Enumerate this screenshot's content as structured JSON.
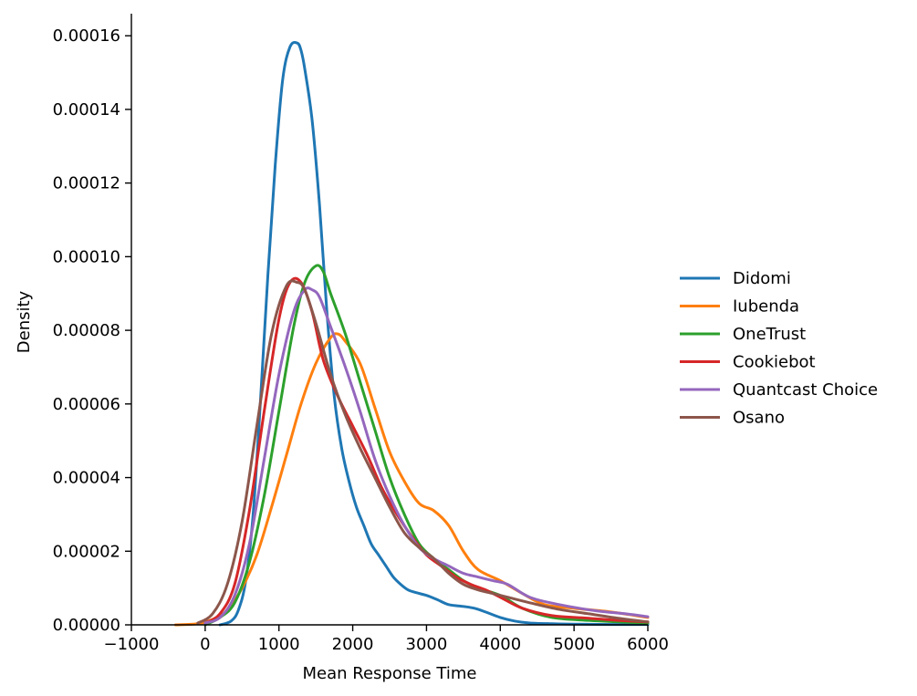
{
  "chart_data": {
    "type": "line",
    "title": "",
    "xlabel": "Mean Response Time",
    "ylabel": "Density",
    "xlim": [
      -1000,
      6000
    ],
    "ylim": [
      0,
      0.000166
    ],
    "x_ticks": [
      -1000,
      0,
      1000,
      2000,
      3000,
      4000,
      5000,
      6000
    ],
    "x_tick_labels": [
      "−1000",
      "0",
      "1000",
      "2000",
      "3000",
      "4000",
      "5000",
      "6000"
    ],
    "y_ticks": [
      0,
      2e-05,
      4e-05,
      6e-05,
      8e-05,
      0.0001,
      0.00012,
      0.00014,
      0.00016
    ],
    "y_tick_labels": [
      "0.00000",
      "0.00002",
      "0.00004",
      "0.00006",
      "0.00008",
      "0.00010",
      "0.00012",
      "0.00014",
      "0.00016"
    ],
    "grid": false,
    "legend_position": "right",
    "series": [
      {
        "name": "Didomi",
        "color": "#1f77b4",
        "x": [
          200,
          350,
          450,
          550,
          650,
          750,
          850,
          950,
          1050,
          1150,
          1250,
          1300,
          1350,
          1450,
          1550,
          1650,
          1750,
          1850,
          1950,
          2050,
          2150,
          2250,
          2350,
          2450,
          2550,
          2650,
          2750,
          2850,
          3000,
          3150,
          3300,
          3500,
          3650,
          3800,
          4000,
          4200,
          4400,
          4700,
          5000,
          5500,
          6000
        ],
        "y": [
          0,
          1e-06,
          4e-06,
          1.2e-05,
          3e-05,
          6.1e-05,
          9.5e-05,
          0.000125,
          0.000148,
          0.000157,
          0.000158,
          0.000156,
          0.000151,
          0.000137,
          0.000114,
          8.5e-05,
          6.2e-05,
          4.8e-05,
          3.9e-05,
          3.2e-05,
          2.7e-05,
          2.2e-05,
          1.9e-05,
          1.6e-05,
          1.3e-05,
          1.1e-05,
          9.5e-06,
          8.8e-06,
          8e-06,
          6.8e-06,
          5.5e-06,
          5e-06,
          4.5e-06,
          3.5e-06,
          2e-06,
          1e-06,
          5e-07,
          3e-07,
          2e-07,
          1e-07,
          1e-07
        ]
      },
      {
        "name": "Iubenda",
        "color": "#ff7f0e",
        "x": [
          -400,
          -100,
          100,
          300,
          500,
          700,
          900,
          1100,
          1300,
          1500,
          1700,
          1800,
          1900,
          2100,
          2300,
          2500,
          2700,
          2900,
          3100,
          3300,
          3500,
          3700,
          4000,
          4300,
          4600,
          5000,
          5500,
          6000
        ],
        "y": [
          0,
          3e-07,
          1.5e-06,
          4e-06,
          1e-05,
          1.9e-05,
          3.2e-05,
          4.6e-05,
          6e-05,
          7.1e-05,
          7.8e-05,
          7.9e-05,
          7.7e-05,
          7.1e-05,
          5.9e-05,
          4.7e-05,
          3.9e-05,
          3.3e-05,
          3.1e-05,
          2.7e-05,
          2e-05,
          1.5e-05,
          1.2e-05,
          8.5e-06,
          5.5e-06,
          4.5e-06,
          3.5e-06,
          2e-06
        ]
      },
      {
        "name": "OneTrust",
        "color": "#2ca02c",
        "x": [
          0,
          200,
          400,
          600,
          800,
          1000,
          1200,
          1350,
          1500,
          1600,
          1700,
          1900,
          2100,
          2300,
          2500,
          2700,
          2900,
          3100,
          3300,
          3500,
          3700,
          4000,
          4300,
          4700,
          5200,
          5600,
          6000
        ],
        "y": [
          0,
          2e-06,
          6e-06,
          1.7e-05,
          3.5e-05,
          5.8e-05,
          8.1e-05,
          9.3e-05,
          9.75e-05,
          9.6e-05,
          9e-05,
          7.9e-05,
          6.6e-05,
          5.3e-05,
          4e-05,
          3e-05,
          2.2e-05,
          1.8e-05,
          1.5e-05,
          1.2e-05,
          1e-05,
          8e-06,
          4.5e-06,
          2e-06,
          1.2e-06,
          8e-07,
          5e-07
        ]
      },
      {
        "name": "Cookiebot",
        "color": "#d62728",
        "x": [
          0,
          200,
          400,
          600,
          800,
          1000,
          1150,
          1300,
          1450,
          1600,
          1800,
          2000,
          2200,
          2400,
          2600,
          2800,
          3000,
          3200,
          3400,
          3600,
          3800,
          4000,
          4300,
          4700,
          5200,
          5600,
          6000
        ],
        "y": [
          5e-07,
          3e-06,
          1.1e-05,
          3.1e-05,
          5.8e-05,
          8.3e-05,
          9.3e-05,
          9.3e-05,
          8.5e-05,
          7.2e-05,
          6.2e-05,
          5.4e-05,
          4.6e-05,
          3.7e-05,
          3e-05,
          2.4e-05,
          1.9e-05,
          1.6e-05,
          1.3e-05,
          1.1e-05,
          9.5e-06,
          7.5e-06,
          4.5e-06,
          2.5e-06,
          1.8e-06,
          1.2e-06,
          8e-07
        ]
      },
      {
        "name": "Quantcast Choice",
        "color": "#9467bd",
        "x": [
          0,
          200,
          400,
          600,
          800,
          1000,
          1200,
          1350,
          1450,
          1550,
          1700,
          1900,
          2100,
          2300,
          2500,
          2700,
          2900,
          3100,
          3300,
          3500,
          3700,
          3900,
          4100,
          4400,
          4800,
          5300,
          5700,
          6000
        ],
        "y": [
          5e-07,
          2e-06,
          8e-06,
          2.2e-05,
          4.5e-05,
          6.8e-05,
          8.5e-05,
          9.1e-05,
          9.1e-05,
          8.9e-05,
          8.1e-05,
          7e-05,
          5.8e-05,
          4.5e-05,
          3.5e-05,
          2.7e-05,
          2.1e-05,
          1.8e-05,
          1.6e-05,
          1.4e-05,
          1.3e-05,
          1.2e-05,
          1.1e-05,
          7.5e-06,
          5.5e-06,
          3.8e-06,
          3e-06,
          2.2e-06
        ]
      },
      {
        "name": "Osano",
        "color": "#8c564b",
        "x": [
          -100,
          100,
          300,
          500,
          700,
          900,
          1100,
          1250,
          1350,
          1500,
          1700,
          1900,
          2100,
          2300,
          2500,
          2700,
          2900,
          3100,
          3300,
          3500,
          3700,
          3900,
          4100,
          4400,
          4800,
          5200,
          5600,
          6000
        ],
        "y": [
          5e-07,
          3e-06,
          1.1e-05,
          2.8e-05,
          5.4e-05,
          7.9e-05,
          9.2e-05,
          9.3e-05,
          9.1e-05,
          8.2e-05,
          6.8e-05,
          5.7e-05,
          4.8e-05,
          4e-05,
          3.2e-05,
          2.5e-05,
          2.1e-05,
          1.8e-05,
          1.4e-05,
          1.1e-05,
          9.5e-06,
          8.5e-06,
          7.5e-06,
          6e-06,
          4.2e-06,
          3e-06,
          1.8e-06,
          8e-07
        ]
      }
    ]
  }
}
